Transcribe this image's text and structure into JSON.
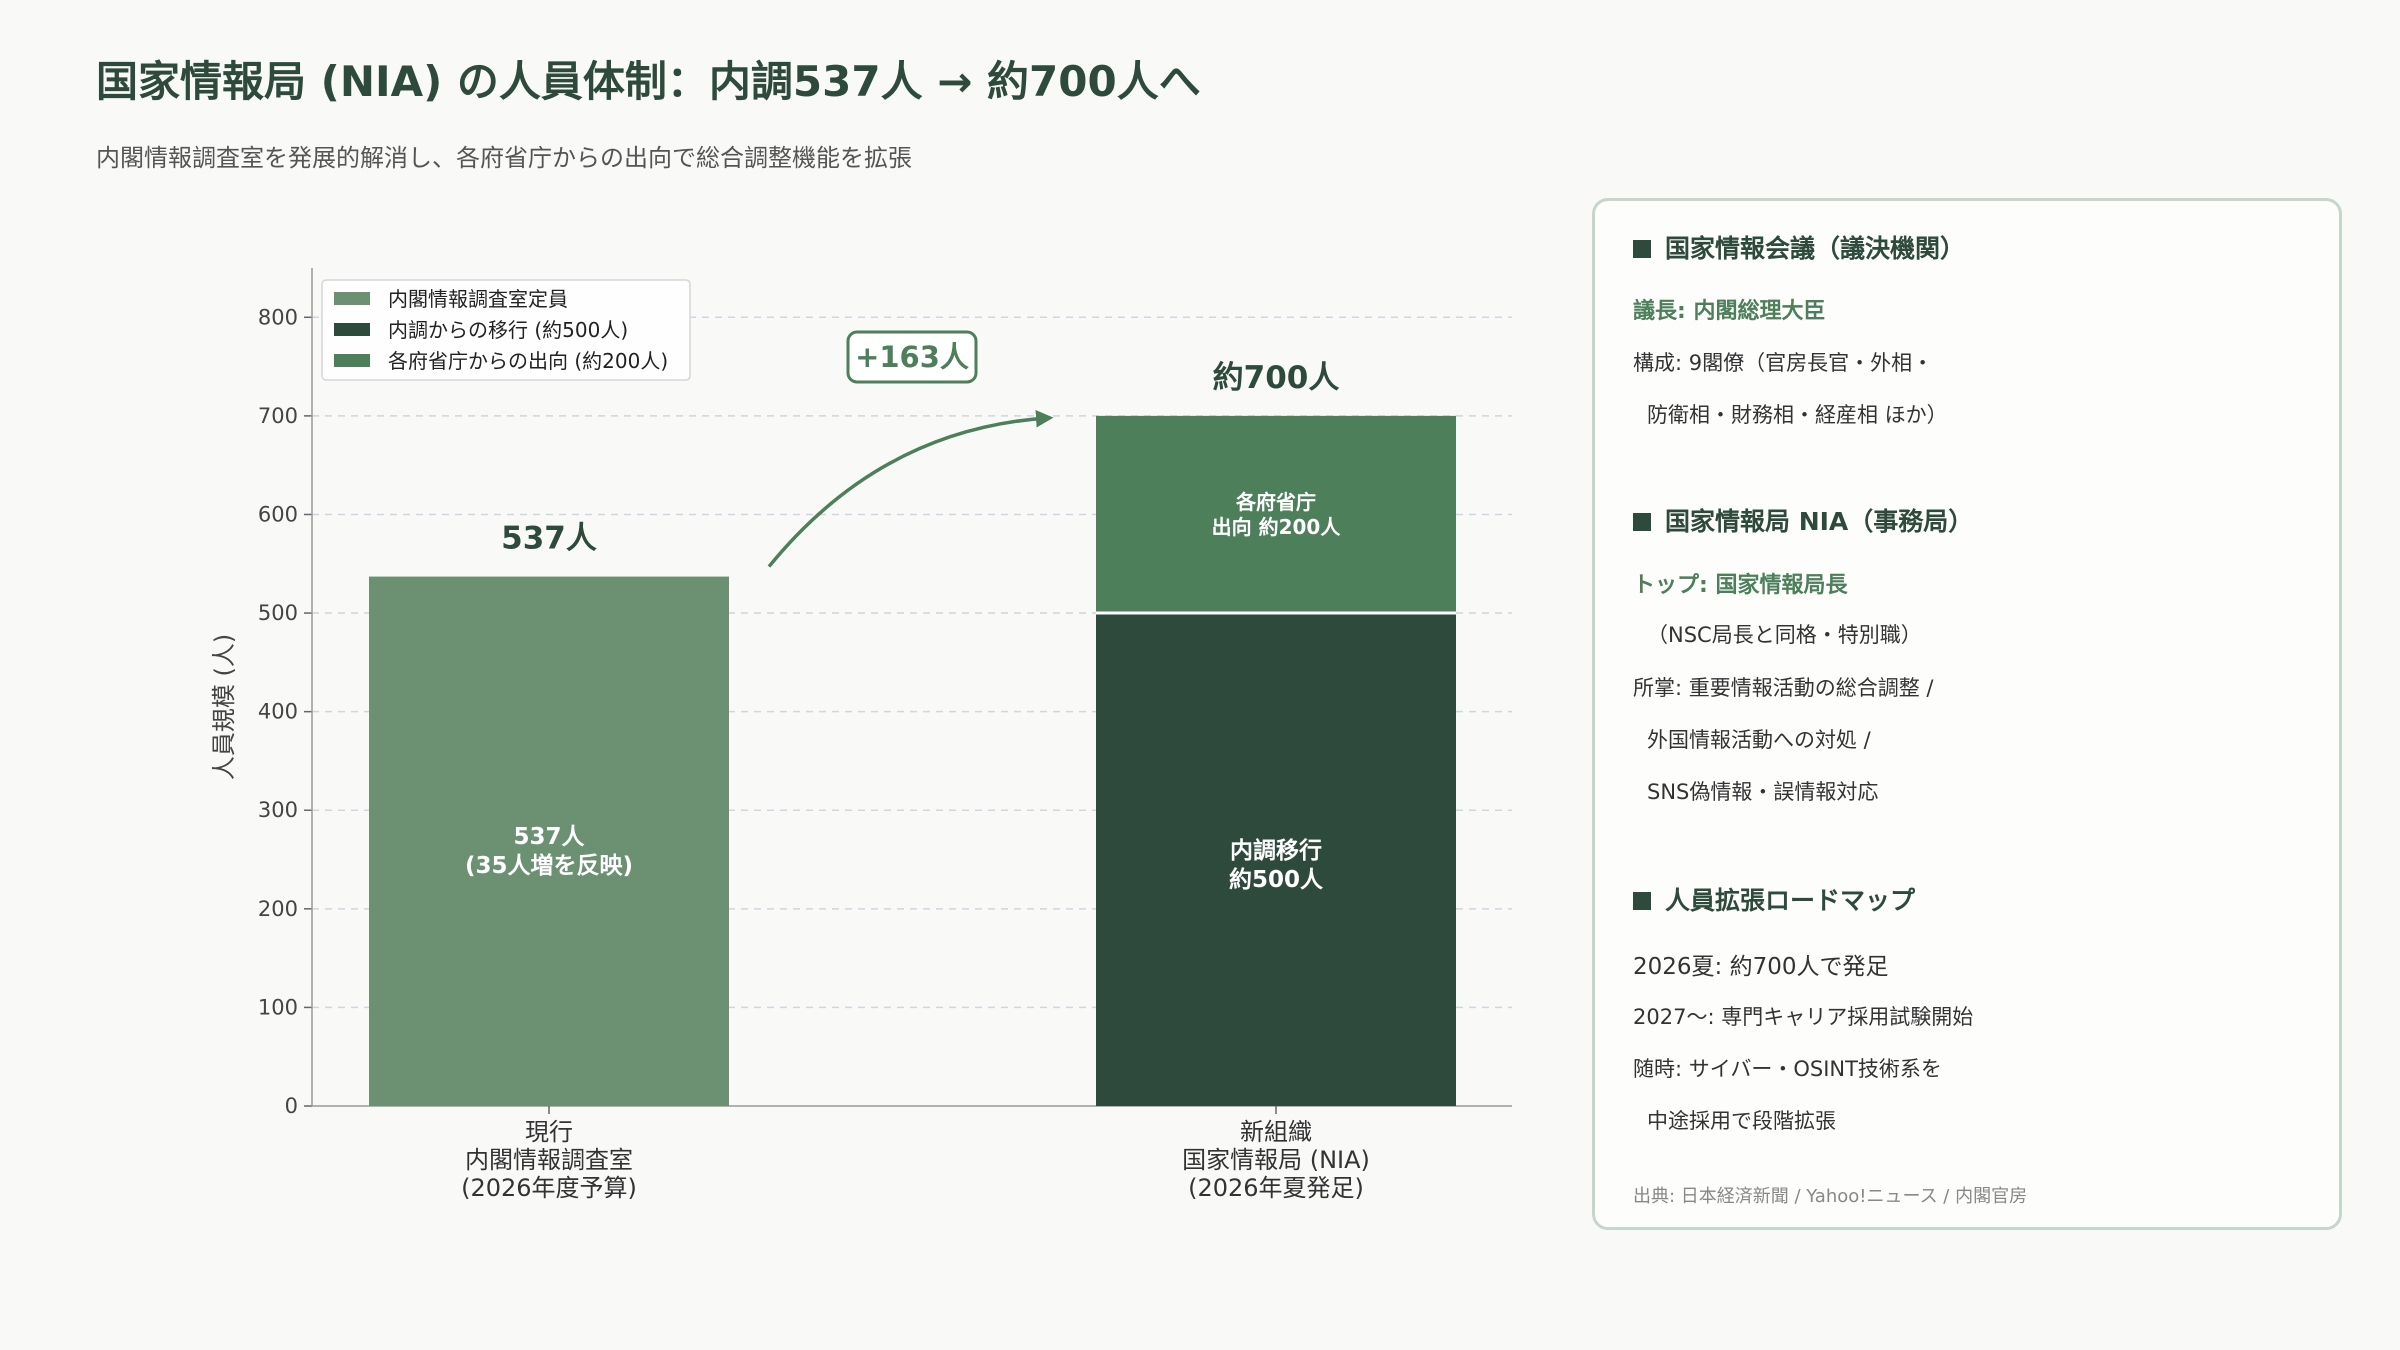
{
  "title": "国家情報局 (NIA) の人員体制：内調537人 → 約700人へ",
  "subtitle": "内閣情報調査室を発展的解消し、各府省庁からの出向で総合調整機能を拡張",
  "colors": {
    "light_green": "#6b9172",
    "dark_green": "#2e4a3d",
    "mid_green": "#4c7f5a"
  },
  "chart_data": {
    "type": "bar",
    "stacked": true,
    "ylabel": "人員規模 (人)",
    "ylim": [
      0,
      850
    ],
    "yticks": [
      0,
      100,
      200,
      300,
      400,
      500,
      600,
      700,
      800
    ],
    "grid": true,
    "legend_position": "top-left",
    "categories": [
      "現行\n内閣情報調査室\n(2026年度予算)",
      "新組織\n国家情報局 (NIA)\n(2026年夏発足)"
    ],
    "series": [
      {
        "name": "内閣情報調査室定員",
        "color": "#6b9172",
        "values": [
          537,
          0
        ]
      },
      {
        "name": "内調からの移行 (約500人)",
        "color": "#2e4a3d",
        "values": [
          0,
          500
        ]
      },
      {
        "name": "各府省庁からの出向 (約200人)",
        "color": "#4c7f5a",
        "values": [
          0,
          200
        ]
      }
    ],
    "total_labels": [
      "537人",
      "約700人"
    ],
    "segment_labels": {
      "current": "537人\n(35人増を反映)",
      "transfer": "内調移行\n約500人",
      "secondment": "各府省庁\n出向 約200人"
    },
    "annotation": "+163人"
  },
  "panel": {
    "council_title": "国家情報会議（議決機関）",
    "council_chair": "議長: 内閣総理大臣",
    "council_members_1": "構成: 9閣僚（官房長官・外相・",
    "council_members_2": "防衛相・財務相・経産相 ほか）",
    "nia_title": "国家情報局 NIA（事務局）",
    "nia_top": "トップ: 国家情報局長",
    "nia_top_note": "（NSC局長と同格・特別職）",
    "nia_duty_1": "所掌: 重要情報活動の総合調整 /",
    "nia_duty_2": "外国情報活動への対処 /",
    "nia_duty_3": "SNS偽情報・誤情報対応",
    "roadmap_title": "人員拡張ロードマップ",
    "roadmap_1": "2026夏: 約700人で発足",
    "roadmap_2": "2027〜: 専門キャリア採用試験開始",
    "roadmap_3": "随時: サイバー・OSINT技術系を",
    "roadmap_4": "中途採用で段階拡張",
    "source": "出典: 日本経済新聞 / Yahoo!ニュース / 内閣官房"
  }
}
